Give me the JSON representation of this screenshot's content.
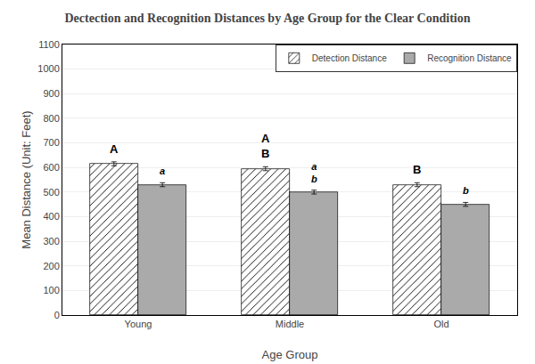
{
  "chart_data": {
    "type": "bar",
    "title": "Dectection and Recognition Distances by Age Group for the Clear Condition",
    "x_label": "Age Group",
    "y_label": "Mean Distance (Unit: Feet)",
    "categories": [
      "Young",
      "Middle",
      "Old"
    ],
    "series": [
      {
        "name": "Detection Distance",
        "color": "#ffffff",
        "values": [
          615,
          595,
          530
        ],
        "errors": [
          8,
          8,
          8
        ],
        "annotations": [
          "A",
          "A\nB",
          "B"
        ]
      },
      {
        "name": "Recognition Distance",
        "color": "#aaaaaa",
        "values": [
          530,
          500,
          450
        ],
        "errors": [
          8,
          8,
          8
        ],
        "annotations": [
          "a",
          "a\nb",
          "b"
        ]
      }
    ],
    "ylim": [
      0,
      1100
    ],
    "yticks": [
      0,
      100,
      200,
      300,
      400,
      500,
      600,
      700,
      800,
      900,
      1000,
      1100
    ],
    "grid": true,
    "legend": "upper right"
  }
}
